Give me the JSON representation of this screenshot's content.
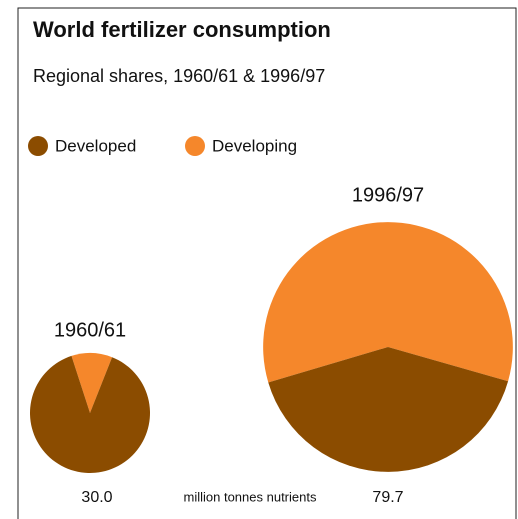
{
  "chart_data": {
    "type": "pie",
    "title": "World fertilizer consumption",
    "subtitle": "Regional shares, 1960/61 & 1996/97",
    "categories": [
      "1960/61",
      "1996/97"
    ],
    "series": [
      {
        "name": "Developed",
        "color": "#8b4c00",
        "values": [
          89,
          41
        ]
      },
      {
        "name": "Developing",
        "color": "#f5872b",
        "values": [
          11,
          59
        ]
      }
    ],
    "totals": [
      30.0,
      79.7
    ],
    "total_labels": [
      "30.0",
      "79.7"
    ],
    "total_unit": "million tonnes nutrients"
  }
}
